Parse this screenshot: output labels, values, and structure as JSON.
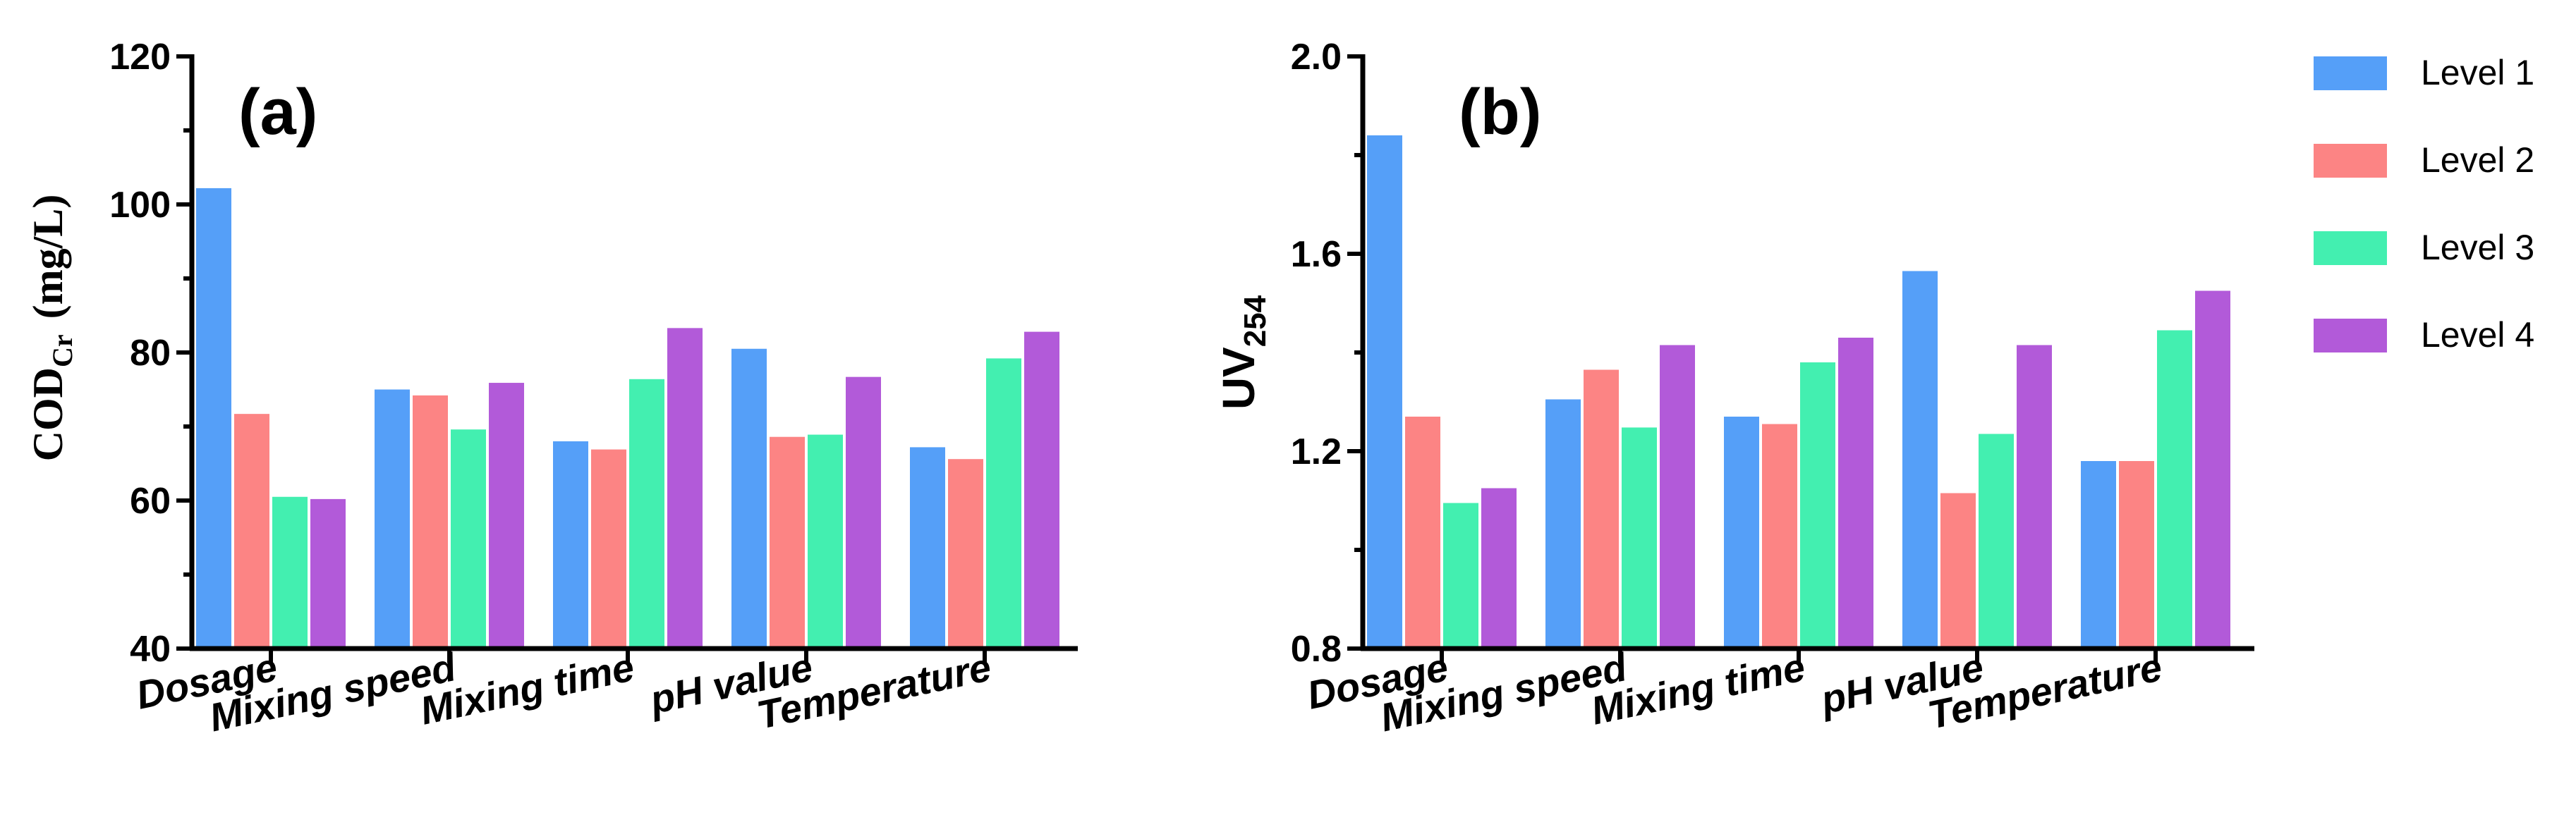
{
  "legend": {
    "entries": [
      "Level 1",
      "Level 2",
      "Level 3",
      "Level 4"
    ],
    "colors": [
      "#559ff8",
      "#fc8484",
      "#43efb0",
      "#b25ad9"
    ],
    "placement": "right"
  },
  "chart_data": [
    {
      "type": "bar",
      "panel_label": "(a)",
      "ylabel_main": "COD",
      "ylabel_sub": "Cr",
      "ylabel_unit": "(mg/L)",
      "categories": [
        "Dosage",
        "Mixing speed",
        "Mixing time",
        "pH value",
        "Temperature"
      ],
      "ylim": [
        40,
        120
      ],
      "ticks": [
        "40",
        "60",
        "80",
        "100",
        "120"
      ],
      "tick_values": [
        40,
        60,
        80,
        100,
        120
      ],
      "minor_step": 10,
      "series": [
        {
          "name": "Level 1",
          "values": [
            102.2,
            75.0,
            68.0,
            80.5,
            67.2
          ]
        },
        {
          "name": "Level 2",
          "values": [
            71.7,
            74.2,
            66.9,
            68.6,
            65.6
          ]
        },
        {
          "name": "Level 3",
          "values": [
            60.5,
            69.6,
            76.4,
            68.9,
            79.2
          ]
        },
        {
          "name": "Level 4",
          "values": [
            60.2,
            75.9,
            83.3,
            76.7,
            82.8
          ]
        }
      ]
    },
    {
      "type": "bar",
      "panel_label": "(b)",
      "ylabel_main": "UV",
      "ylabel_sub": "254",
      "categories": [
        "Dosage",
        "Mixing speed",
        "Mixing time",
        "pH value",
        "Temperature"
      ],
      "ylim": [
        0.8,
        2.0
      ],
      "ticks": [
        "0.8",
        "1.2",
        "1.6",
        "2.0"
      ],
      "tick_values": [
        0.8,
        1.2,
        1.6,
        2.0
      ],
      "minor_step": 0.2,
      "series": [
        {
          "name": "Level 1",
          "values": [
            1.84,
            1.305,
            1.27,
            1.565,
            1.18
          ]
        },
        {
          "name": "Level 2",
          "values": [
            1.27,
            1.365,
            1.255,
            1.115,
            1.18
          ]
        },
        {
          "name": "Level 3",
          "values": [
            1.095,
            1.248,
            1.38,
            1.235,
            1.445
          ]
        },
        {
          "name": "Level 4",
          "values": [
            1.125,
            1.415,
            1.43,
            1.415,
            1.525
          ]
        }
      ]
    }
  ]
}
